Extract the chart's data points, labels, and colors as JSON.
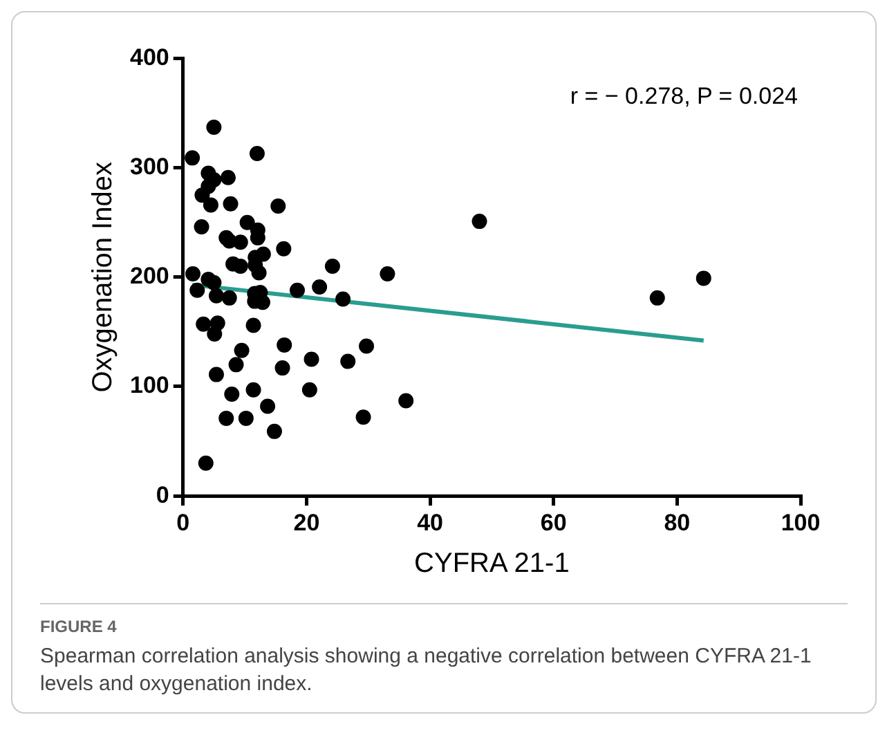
{
  "chart_data": {
    "type": "scatter",
    "xlabel": "CYFRA 21-1",
    "ylabel": "Oxygenation Index",
    "xlim": [
      0,
      100
    ],
    "xticks": [
      0,
      20,
      40,
      60,
      80,
      100
    ],
    "ylim": [
      0,
      400
    ],
    "yticks": [
      0,
      100,
      200,
      300,
      400
    ],
    "grid": false,
    "legend": false,
    "marker": "circle",
    "series": [
      {
        "type": "scatter",
        "color": "#000000",
        "x": [
          5.0,
          1.5,
          12.0,
          7.3,
          4.1,
          5.0,
          4.1,
          3.1,
          4.5,
          7.7,
          15.4,
          3.0,
          10.4,
          12.1,
          12.1,
          7.0,
          9.3,
          7.5,
          16.3,
          13.0,
          11.7,
          8.1,
          9.3,
          11.7,
          12.3,
          1.6,
          4.1,
          5.0,
          2.3,
          5.4,
          7.5,
          11.6,
          12.5,
          11.6,
          12.9,
          18.5,
          22.1,
          3.3,
          5.6,
          5.1,
          11.4,
          9.5,
          16.4,
          20.8,
          8.6,
          16.1,
          5.4,
          7.9,
          11.4,
          20.5,
          13.7,
          7.0,
          10.2,
          14.8,
          3.7,
          48.0,
          24.2,
          33.1,
          25.9,
          76.8,
          84.3,
          29.7,
          26.7,
          36.1,
          29.2
        ],
        "values": [
          337,
          309,
          313,
          291,
          295,
          289,
          283,
          275,
          266,
          267,
          265,
          246,
          250,
          243,
          236,
          236,
          232,
          233,
          226,
          221,
          218,
          212,
          210,
          211,
          204,
          203,
          198,
          195,
          188,
          183,
          181,
          185,
          186,
          178,
          177,
          188,
          191,
          157,
          158,
          148,
          156,
          133,
          138,
          125,
          120,
          117,
          111,
          93,
          97,
          97,
          82,
          71,
          71,
          59,
          30,
          251,
          210,
          203,
          180,
          181,
          199,
          137,
          123,
          87,
          72
        ]
      },
      {
        "type": "line",
        "color": "#2a9d8f",
        "line_style": "solid",
        "marker": "none",
        "x": [
          1.5,
          84.3
        ],
        "values": [
          193,
          142
        ]
      }
    ],
    "annotations": [
      "r = − 0.278, P = 0.024",
      "FIGURE 4",
      "Spearman correlation analysis showing a negative correlation between CYFRA 21-1 levels and oxygenation index."
    ]
  }
}
